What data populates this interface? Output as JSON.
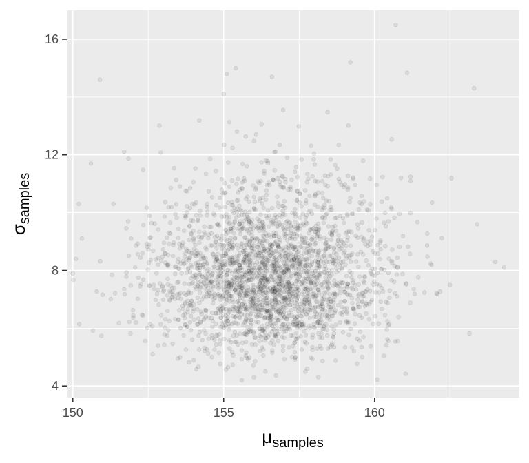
{
  "chart_data": {
    "type": "scatter",
    "title": "",
    "xlabel": "μ",
    "xlabel_subscript": "samples",
    "ylabel": "σ",
    "ylabel_subscript": "samples",
    "xlim": [
      149.8,
      164.8
    ],
    "ylim": [
      3.6,
      17.0
    ],
    "x_ticks": [
      150,
      155,
      160
    ],
    "x_tick_labels": [
      "150",
      "155",
      "160"
    ],
    "y_ticks": [
      4,
      8,
      12,
      16
    ],
    "y_tick_labels": [
      "4",
      "8",
      "12",
      "16"
    ],
    "grid": true,
    "legend": "none",
    "point_color": "#000000",
    "point_opacity": 0.08,
    "panel_background": "#ebebeb",
    "grid_color": "#ffffff",
    "distribution": {
      "n": 2600,
      "mu_center": 156.6,
      "mu_sd": 1.9,
      "sigma_mode": 7.4,
      "sigma_skew": "right",
      "sigma_min_seen": 4.2,
      "sigma_max_seen": 16.5
    },
    "outliers": [
      {
        "x": 160.7,
        "y": 16.5
      },
      {
        "x": 159.2,
        "y": 15.2
      },
      {
        "x": 155.4,
        "y": 15.0
      },
      {
        "x": 155.1,
        "y": 14.8
      },
      {
        "x": 156.6,
        "y": 14.7
      },
      {
        "x": 163.3,
        "y": 14.3
      },
      {
        "x": 150.9,
        "y": 14.6
      },
      {
        "x": 155.0,
        "y": 14.1
      },
      {
        "x": 150.0,
        "y": 7.9
      },
      {
        "x": 150.1,
        "y": 8.4
      },
      {
        "x": 150.3,
        "y": 9.1
      },
      {
        "x": 150.2,
        "y": 10.3
      },
      {
        "x": 150.6,
        "y": 11.7
      },
      {
        "x": 164.0,
        "y": 8.3
      },
      {
        "x": 164.3,
        "y": 8.1
      },
      {
        "x": 163.4,
        "y": 9.6
      },
      {
        "x": 162.5,
        "y": 7.5
      },
      {
        "x": 155.6,
        "y": 4.2
      },
      {
        "x": 156.0,
        "y": 4.3
      }
    ]
  }
}
